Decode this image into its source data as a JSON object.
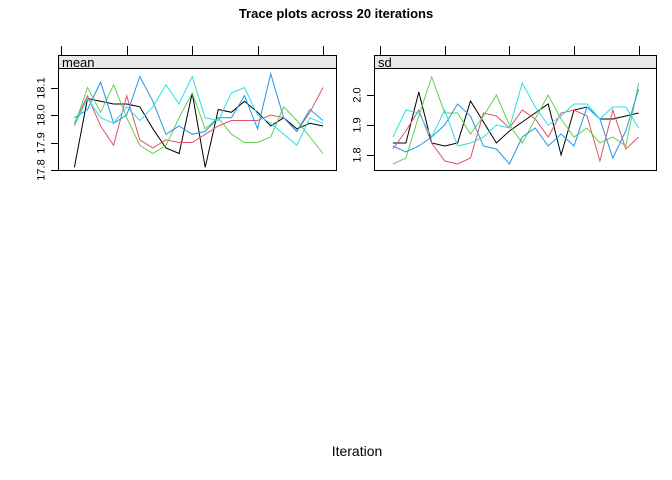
{
  "title": "Trace plots across 20 iterations",
  "xlabel": "Iteration",
  "colors": {
    "background": "#ffffff",
    "strip_background": "#e8e8e8",
    "axis": "#000000",
    "series_palette": [
      "#000000",
      "#DF536B",
      "#61D04F",
      "#2297E6",
      "#28E2E5"
    ]
  },
  "chart_data": [
    {
      "type": "line",
      "name": "mean",
      "strip_label": "mean",
      "x_range": [
        1,
        20
      ],
      "n_points": 20,
      "x_ticks": [
        0,
        5,
        10,
        15,
        20
      ],
      "y_ticks": [
        "17.8",
        "17.9",
        "18.0",
        "18.1"
      ],
      "ylim": [
        17.8,
        18.171
      ],
      "grid": false,
      "legend": "none",
      "series": [
        {
          "name": "series-black",
          "color": "#000000",
          "values": [
            17.81,
            18.06,
            18.05,
            18.04,
            18.04,
            18.03,
            17.95,
            17.88,
            17.86,
            18.08,
            17.81,
            18.02,
            18.01,
            18.05,
            18.01,
            17.96,
            17.99,
            17.95,
            17.97,
            17.96
          ]
        },
        {
          "name": "series-red",
          "color": "#DF536B",
          "values": [
            17.97,
            18.07,
            17.96,
            17.89,
            18.07,
            17.91,
            17.88,
            17.91,
            17.9,
            17.9,
            17.93,
            17.96,
            17.98,
            17.98,
            17.98,
            18.0,
            17.99,
            17.94,
            18.01,
            18.1
          ]
        },
        {
          "name": "series-green",
          "color": "#61D04F",
          "values": [
            17.96,
            18.1,
            18.01,
            18.11,
            17.99,
            17.89,
            17.86,
            17.89,
            17.99,
            18.08,
            17.95,
            17.99,
            17.93,
            17.9,
            17.9,
            17.92,
            18.03,
            17.98,
            17.92,
            17.86
          ]
        },
        {
          "name": "series-blue",
          "color": "#2297E6",
          "values": [
            17.99,
            18.02,
            18.12,
            17.97,
            18.0,
            18.14,
            18.05,
            17.93,
            17.96,
            17.93,
            17.94,
            17.99,
            17.99,
            18.07,
            17.95,
            18.15,
            17.99,
            17.94,
            18.02,
            17.98
          ]
        },
        {
          "name": "series-cyan",
          "color": "#28E2E5",
          "values": [
            17.96,
            18.06,
            17.99,
            17.97,
            18.03,
            17.98,
            18.03,
            18.11,
            18.04,
            18.14,
            17.99,
            17.98,
            18.08,
            18.1,
            18.0,
            17.97,
            17.93,
            17.89,
            17.99,
            17.97
          ]
        }
      ]
    },
    {
      "type": "line",
      "name": "sd",
      "strip_label": "sd",
      "x_range": [
        1,
        20
      ],
      "n_points": 20,
      "x_ticks": [
        0,
        5,
        10,
        15,
        20
      ],
      "y_ticks": [
        "1.8",
        "1.9",
        "2.0"
      ],
      "ylim": [
        1.75,
        2.09
      ],
      "grid": false,
      "legend": "none",
      "series": [
        {
          "name": "series-black",
          "color": "#000000",
          "values": [
            1.84,
            1.84,
            2.01,
            1.84,
            1.83,
            1.84,
            1.98,
            1.91,
            1.84,
            1.88,
            1.91,
            1.94,
            1.97,
            1.8,
            1.95,
            1.96,
            1.92,
            1.92,
            1.93,
            1.94
          ]
        },
        {
          "name": "series-red",
          "color": "#DF536B",
          "values": [
            1.82,
            1.88,
            1.95,
            1.84,
            1.78,
            1.77,
            1.79,
            1.94,
            1.93,
            1.89,
            1.95,
            1.92,
            1.86,
            1.94,
            1.95,
            1.93,
            1.78,
            1.95,
            1.82,
            1.86
          ]
        },
        {
          "name": "series-green",
          "color": "#61D04F",
          "values": [
            1.77,
            1.79,
            1.93,
            2.06,
            1.94,
            1.94,
            1.87,
            1.93,
            2.0,
            1.9,
            1.84,
            1.92,
            2.0,
            1.92,
            1.86,
            1.89,
            1.84,
            1.86,
            1.83,
            2.04
          ]
        },
        {
          "name": "series-blue",
          "color": "#2297E6",
          "values": [
            1.83,
            1.81,
            1.83,
            1.86,
            1.9,
            1.97,
            1.93,
            1.83,
            1.82,
            1.77,
            1.86,
            1.89,
            1.83,
            1.87,
            1.83,
            1.96,
            1.92,
            1.79,
            1.88,
            2.02
          ]
        },
        {
          "name": "series-cyan",
          "color": "#28E2E5",
          "values": [
            1.86,
            1.95,
            1.94,
            1.86,
            1.95,
            1.83,
            1.84,
            1.86,
            1.9,
            1.89,
            2.04,
            1.96,
            1.9,
            1.93,
            1.97,
            1.97,
            1.92,
            1.96,
            1.96,
            1.89
          ]
        }
      ]
    }
  ]
}
